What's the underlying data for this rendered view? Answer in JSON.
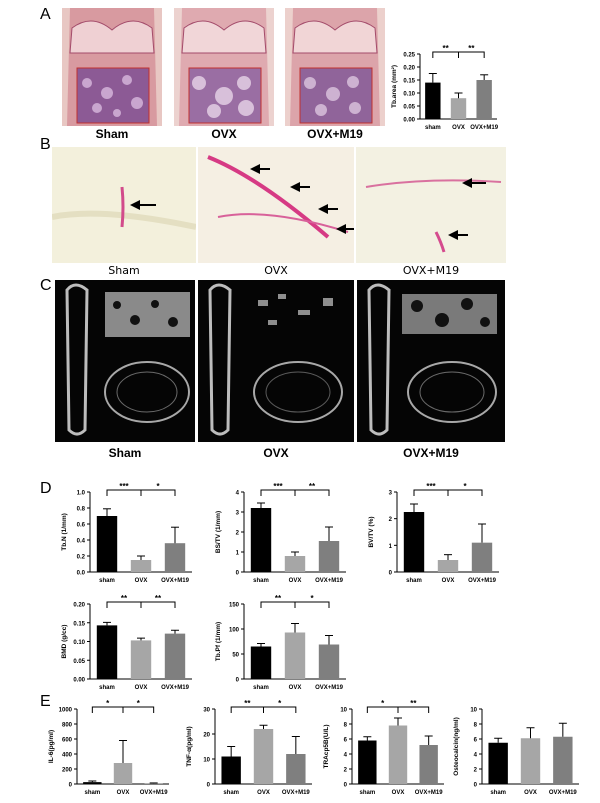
{
  "panel_labels": {
    "A": "A",
    "B": "B",
    "C": "C",
    "D": "D",
    "E": "E"
  },
  "panelA": {
    "captions": [
      "Sham",
      "OVX",
      "OVX+M19"
    ]
  },
  "panelB": {
    "captions": [
      "Sham",
      "OVX",
      "OVX+M19"
    ]
  },
  "panelC": {
    "captions": [
      "Sham",
      "OVX",
      "OVX+M19"
    ]
  },
  "colors": {
    "black": "#000000",
    "gray": "#a6a6a6",
    "darkgray": "#7f7f7f"
  },
  "chart_data": [
    {
      "id": "tbarea",
      "type": "bar",
      "categories": [
        "sham",
        "OVX",
        "OVX+M19"
      ],
      "values": [
        0.14,
        0.08,
        0.15
      ],
      "errors": [
        0.035,
        0.02,
        0.02
      ],
      "ylabel": "Tb.area (mm²)",
      "ylim": [
        0,
        0.25
      ],
      "yticks": [
        0.0,
        0.05,
        0.1,
        0.15,
        0.2,
        0.25
      ],
      "tick_fmt": 2,
      "colors": [
        "#000000",
        "#a6a6a6",
        "#7f7f7f"
      ],
      "sig": [
        {
          "from": 0,
          "to": 1,
          "label": "**"
        },
        {
          "from": 1,
          "to": 2,
          "label": "**"
        }
      ]
    },
    {
      "id": "tbn",
      "type": "bar",
      "categories": [
        "sham",
        "OVX",
        "OVX+M19"
      ],
      "values": [
        0.7,
        0.15,
        0.36
      ],
      "errors": [
        0.09,
        0.05,
        0.2
      ],
      "ylabel": "Tb.N (1/mm)",
      "ylim": [
        0,
        1.0
      ],
      "yticks": [
        0.0,
        0.2,
        0.4,
        0.6,
        0.8,
        1.0
      ],
      "tick_fmt": 1,
      "colors": [
        "#000000",
        "#a6a6a6",
        "#7f7f7f"
      ],
      "sig": [
        {
          "from": 0,
          "to": 1,
          "label": "***"
        },
        {
          "from": 1,
          "to": 2,
          "label": "*"
        }
      ]
    },
    {
      "id": "bstv",
      "type": "bar",
      "categories": [
        "sham",
        "OVX",
        "OVX+M19"
      ],
      "values": [
        3.2,
        0.8,
        1.55
      ],
      "errors": [
        0.25,
        0.2,
        0.7
      ],
      "ylabel": "BS/TV (1/mm)",
      "ylim": [
        0,
        4
      ],
      "yticks": [
        0,
        1,
        2,
        3,
        4
      ],
      "tick_fmt": 0,
      "colors": [
        "#000000",
        "#a6a6a6",
        "#7f7f7f"
      ],
      "sig": [
        {
          "from": 0,
          "to": 1,
          "label": "***"
        },
        {
          "from": 1,
          "to": 2,
          "label": "**"
        }
      ]
    },
    {
      "id": "bvtv",
      "type": "bar",
      "categories": [
        "sham",
        "OVX",
        "OVX+M19"
      ],
      "values": [
        2.25,
        0.45,
        1.1
      ],
      "errors": [
        0.3,
        0.2,
        0.7
      ],
      "ylabel": "BV/TV (%)",
      "ylim": [
        0,
        3
      ],
      "yticks": [
        0,
        1,
        2,
        3
      ],
      "tick_fmt": 0,
      "colors": [
        "#000000",
        "#a6a6a6",
        "#7f7f7f"
      ],
      "sig": [
        {
          "from": 0,
          "to": 1,
          "label": "***"
        },
        {
          "from": 1,
          "to": 2,
          "label": "*"
        }
      ]
    },
    {
      "id": "bmd",
      "type": "bar",
      "categories": [
        "sham",
        "OVX",
        "OVX+M19"
      ],
      "values": [
        0.143,
        0.103,
        0.121
      ],
      "errors": [
        0.008,
        0.006,
        0.009
      ],
      "ylabel": "BMD (g/cc)",
      "ylim": [
        0,
        0.2
      ],
      "yticks": [
        0.0,
        0.05,
        0.1,
        0.15,
        0.2
      ],
      "tick_fmt": 2,
      "colors": [
        "#000000",
        "#a6a6a6",
        "#7f7f7f"
      ],
      "sig": [
        {
          "from": 0,
          "to": 1,
          "label": "**"
        },
        {
          "from": 1,
          "to": 2,
          "label": "**"
        }
      ]
    },
    {
      "id": "tbpf",
      "type": "bar",
      "categories": [
        "sham",
        "OVX",
        "OVX+M19"
      ],
      "values": [
        65,
        93,
        69
      ],
      "errors": [
        6,
        18,
        18
      ],
      "ylabel": "Tb.Pf (1/mm)",
      "ylim": [
        0,
        150
      ],
      "yticks": [
        0,
        50,
        100,
        150
      ],
      "tick_fmt": 0,
      "colors": [
        "#000000",
        "#a6a6a6",
        "#7f7f7f"
      ],
      "sig": [
        {
          "from": 0,
          "to": 1,
          "label": "**"
        },
        {
          "from": 1,
          "to": 2,
          "label": "*"
        }
      ]
    },
    {
      "id": "il6",
      "type": "bar",
      "categories": [
        "sham",
        "OVX",
        "OVX+M19"
      ],
      "values": [
        25,
        280,
        8
      ],
      "errors": [
        15,
        300,
        6
      ],
      "ylabel": "IL-6(pg/ml)",
      "ylim": [
        0,
        1000
      ],
      "yticks": [
        0,
        200,
        400,
        600,
        800,
        1000
      ],
      "tick_fmt": 0,
      "colors": [
        "#000000",
        "#a6a6a6",
        "#7f7f7f"
      ],
      "sig": [
        {
          "from": 0,
          "to": 1,
          "label": "*"
        },
        {
          "from": 1,
          "to": 2,
          "label": "*"
        }
      ]
    },
    {
      "id": "tnf",
      "type": "bar",
      "categories": [
        "sham",
        "OVX",
        "OVX+M19"
      ],
      "values": [
        11,
        22,
        12
      ],
      "errors": [
        4,
        1.5,
        7
      ],
      "ylabel": "TNF-α(pg/ml)",
      "ylim": [
        0,
        30
      ],
      "yticks": [
        0,
        10,
        20,
        30
      ],
      "tick_fmt": 0,
      "colors": [
        "#000000",
        "#a6a6a6",
        "#7f7f7f"
      ],
      "sig": [
        {
          "from": 0,
          "to": 1,
          "label": "**"
        },
        {
          "from": 1,
          "to": 2,
          "label": "*"
        }
      ]
    },
    {
      "id": "tracp",
      "type": "bar",
      "categories": [
        "sham",
        "OVX",
        "OVX+M19"
      ],
      "values": [
        5.8,
        7.8,
        5.2
      ],
      "errors": [
        0.5,
        1.0,
        1.2
      ],
      "ylabel": "TRAcp5B(U/L)",
      "ylim": [
        0,
        10
      ],
      "yticks": [
        0,
        2,
        4,
        6,
        8,
        10
      ],
      "tick_fmt": 0,
      "colors": [
        "#000000",
        "#a6a6a6",
        "#7f7f7f"
      ],
      "sig": [
        {
          "from": 0,
          "to": 1,
          "label": "*"
        },
        {
          "from": 1,
          "to": 2,
          "label": "**"
        }
      ]
    },
    {
      "id": "osteo",
      "type": "bar",
      "categories": [
        "sham",
        "OVX",
        "OVX+M19"
      ],
      "values": [
        5.5,
        6.1,
        6.3
      ],
      "errors": [
        0.6,
        1.4,
        1.8
      ],
      "ylabel": "Osteocalcin(ng/ml)",
      "ylim": [
        0,
        10
      ],
      "yticks": [
        0,
        2,
        4,
        6,
        8,
        10
      ],
      "tick_fmt": 0,
      "colors": [
        "#000000",
        "#a6a6a6",
        "#7f7f7f"
      ],
      "sig": []
    }
  ]
}
